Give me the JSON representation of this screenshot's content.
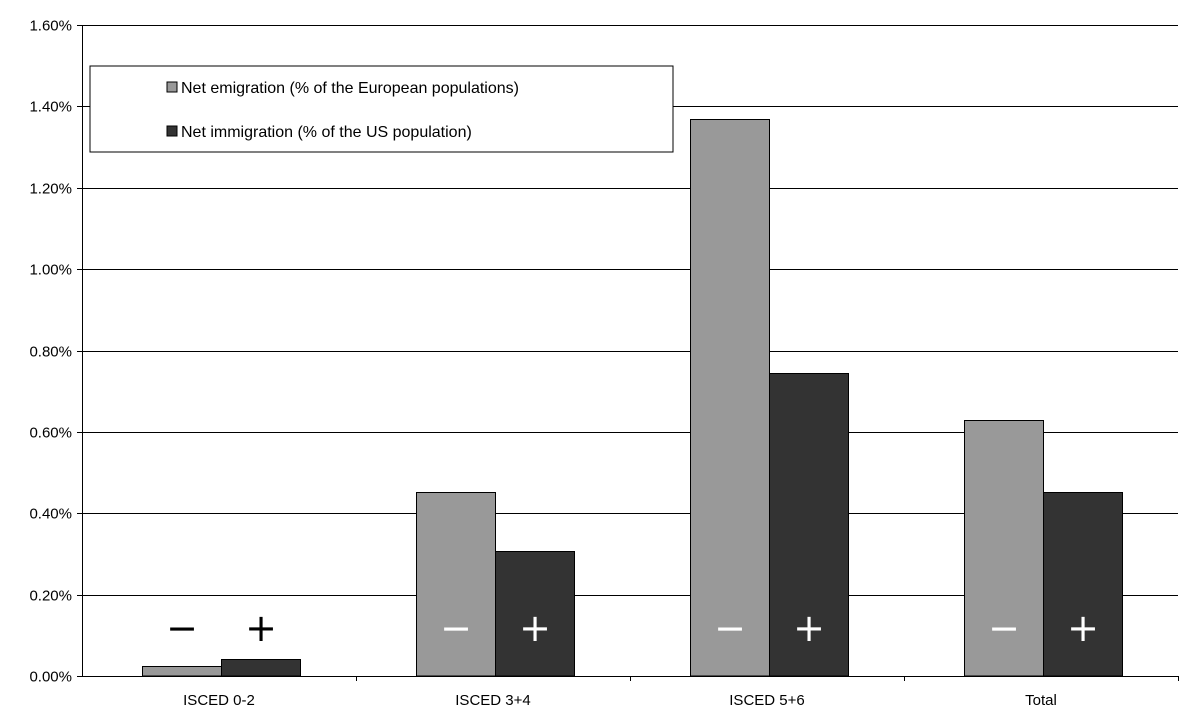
{
  "chart_data": {
    "type": "bar",
    "categories": [
      "ISCED 0-2",
      "ISCED 3+4",
      "ISCED 5+6",
      "Total"
    ],
    "series": [
      {
        "name": "Net emigration (% of the European populations)",
        "values": [
          0.025,
          0.452,
          1.37,
          0.628
        ],
        "color": "#999999",
        "sign": "−"
      },
      {
        "name": "Net immigration (% of the US population)",
        "values": [
          0.043,
          0.308,
          0.745,
          0.453
        ],
        "color": "#333333",
        "sign": "+"
      }
    ],
    "ylim": [
      0,
      1.6
    ],
    "yticks": [
      0,
      0.2,
      0.4,
      0.6,
      0.8,
      1.0,
      1.2,
      1.4,
      1.6
    ],
    "ytick_labels": [
      "0.00%",
      "0.20%",
      "0.40%",
      "0.60%",
      "0.80%",
      "1.00%",
      "1.20%",
      "1.40%",
      "1.60%"
    ],
    "grid": true,
    "legend_position": "top-left",
    "title": "",
    "xlabel": "",
    "ylabel": ""
  }
}
